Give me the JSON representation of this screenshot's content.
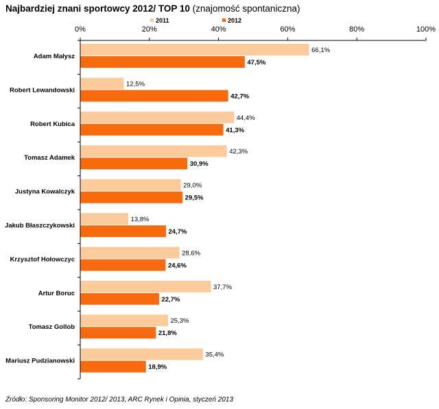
{
  "title_bold": "Najbardziej znani sportowcy 2012/ TOP 10",
  "title_rest": "(znajomość spontaniczna)",
  "source": "Źródło: Sponsoring Monitor 2012/ 2013, ARC Rynek i Opinia, styczeń 2013",
  "chart_data": {
    "type": "bar",
    "orientation": "horizontal",
    "title": "Najbardziej znani sportowcy 2012/ TOP 10 (znajomość spontaniczna)",
    "categories": [
      "Adam Małysz",
      "Robert Lewandowski",
      "Robert Kubica",
      "Tomasz Adamek",
      "Justyna Kowalczyk",
      "Jakub Błaszczykowski",
      "Krzysztof Hołowczyc",
      "Artur Boruc",
      "Tomasz Gollob",
      "Mariusz Pudzianowski"
    ],
    "series": [
      {
        "name": "2011",
        "color": "#FCCB9C",
        "values": [
          66.1,
          12.5,
          44.4,
          42.3,
          29.0,
          13.8,
          28.6,
          37.7,
          25.3,
          35.4
        ],
        "labels": [
          "66,1%",
          "12,5%",
          "44,4%",
          "42,3%",
          "29,0%",
          "13,8%",
          "28,6%",
          "37,7%",
          "25,3%",
          "35,4%"
        ]
      },
      {
        "name": "2012",
        "color": "#F86A0E",
        "values": [
          47.5,
          42.7,
          41.3,
          30.9,
          29.5,
          24.7,
          24.6,
          22.7,
          21.8,
          18.9
        ],
        "labels": [
          "47,5%",
          "42,7%",
          "41,3%",
          "30,9%",
          "29,5%",
          "24,7%",
          "24,6%",
          "22,7%",
          "21,8%",
          "18,9%"
        ]
      }
    ],
    "xlim": [
      0,
      100
    ],
    "xticks": [
      0,
      20,
      40,
      60,
      80,
      100
    ],
    "xtick_labels": [
      "0%",
      "20%",
      "40%",
      "60%",
      "80%",
      "100%"
    ],
    "axis_position": "top",
    "legend_position": "top",
    "grid": false
  }
}
